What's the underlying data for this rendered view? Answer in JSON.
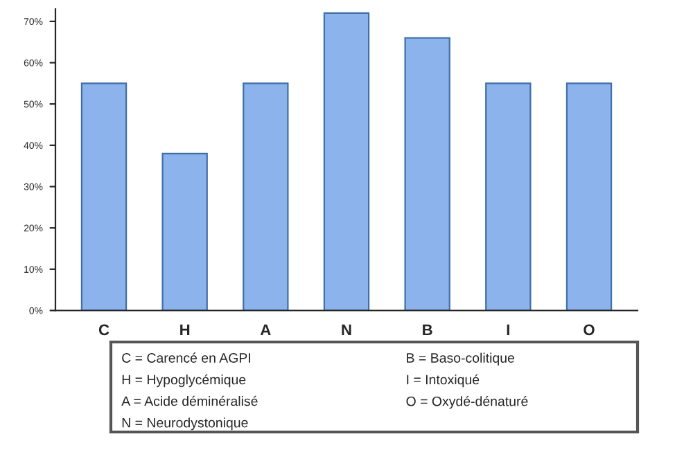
{
  "chart_data": {
    "type": "bar",
    "categories": [
      "C",
      "H",
      "A",
      "N",
      "B",
      "I",
      "O"
    ],
    "values": [
      55,
      38,
      55,
      72,
      66,
      55,
      55
    ],
    "color": "#8db3ec",
    "ylim": [
      0,
      73
    ],
    "yticks": [
      {
        "value": 0,
        "label": "0%"
      },
      {
        "value": 10,
        "label": "10%"
      },
      {
        "value": 20,
        "label": "20%"
      },
      {
        "value": 30,
        "label": "30%"
      },
      {
        "value": 40,
        "label": "40%"
      },
      {
        "value": 50,
        "label": "50%"
      },
      {
        "value": 60,
        "label": "60%"
      },
      {
        "value": 70,
        "label": "70%"
      }
    ],
    "grid": false,
    "annotations": [
      "C = Carencé en AGPI",
      "H = Hypoglycémique",
      "A = Acide déminéralisé",
      "N = Neurodystonique",
      "B = Baso-colitique",
      "I = Intoxiqué",
      "O = Oxydé-dénaturé"
    ]
  }
}
